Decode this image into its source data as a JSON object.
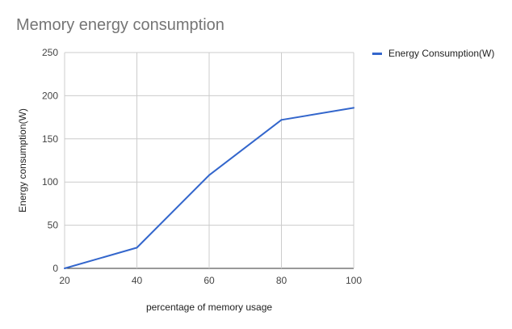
{
  "chart_data": {
    "type": "line",
    "title": "Memory energy consumption",
    "xlabel": "percentage of memory usage",
    "ylabel": "Energy consumption(W)",
    "x": [
      20,
      40,
      60,
      80,
      100
    ],
    "xlim": [
      20,
      100
    ],
    "ylim": [
      0,
      250
    ],
    "x_ticks": [
      20,
      40,
      60,
      80,
      100
    ],
    "y_ticks": [
      0,
      50,
      100,
      150,
      200,
      250
    ],
    "grid": true,
    "legend_position": "right",
    "series": [
      {
        "name": "Energy Consumption(W)",
        "color": "#3366cc",
        "values": [
          0,
          24,
          108,
          172,
          186
        ]
      }
    ]
  }
}
